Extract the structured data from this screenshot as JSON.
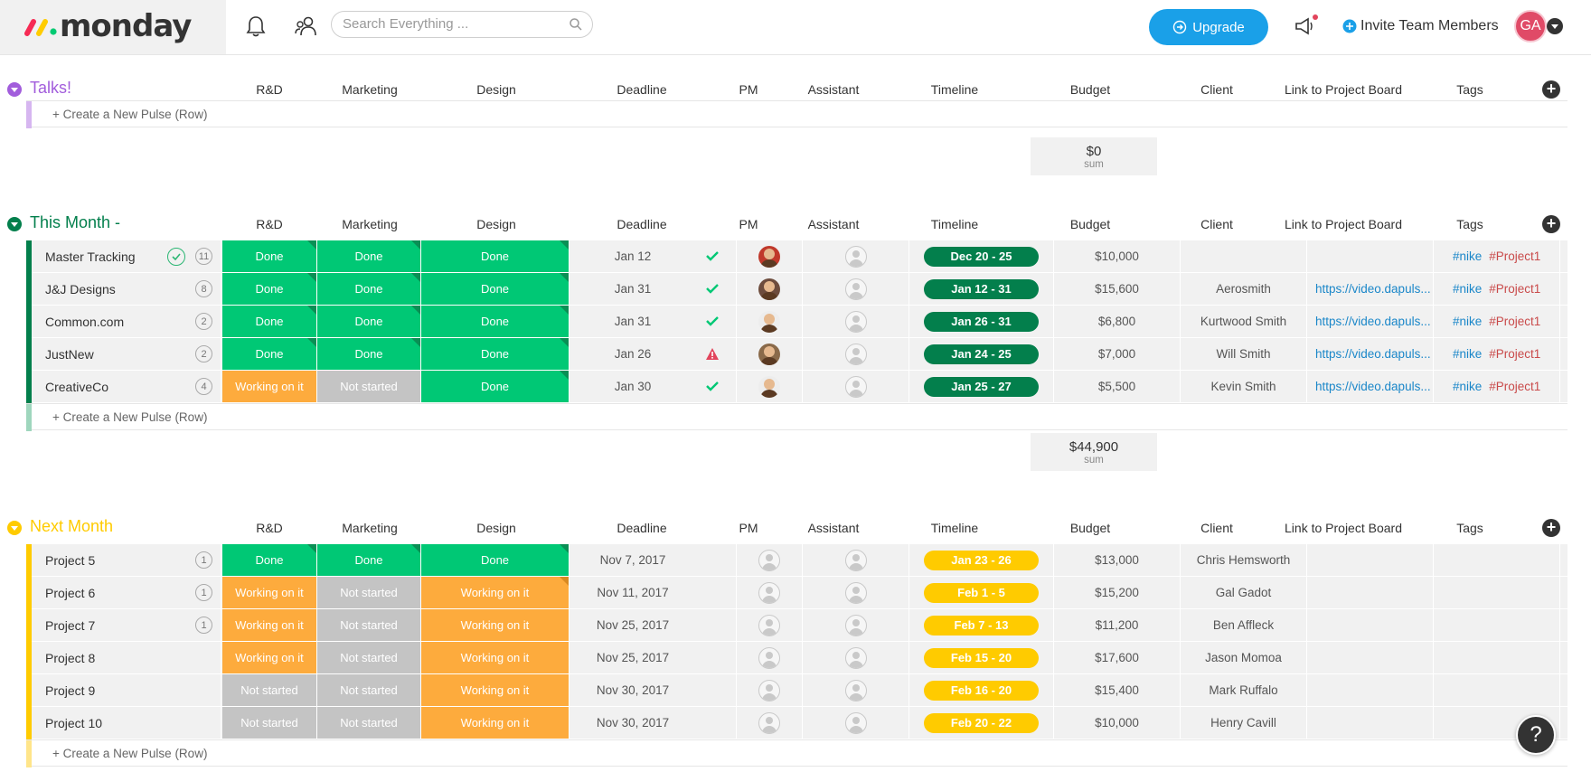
{
  "header": {
    "logo_text": "monday",
    "search_placeholder": "Search Everything ...",
    "upgrade_label": "Upgrade",
    "invite_label": "Invite Team Members",
    "avatar_initials": "GA",
    "accent": "#1aa0e8"
  },
  "columns": [
    "R&D",
    "Marketing",
    "Design",
    "Deadline",
    "PM",
    "Assistant",
    "Timeline",
    "Budget",
    "Client",
    "Link to Project Board",
    "Tags"
  ],
  "new_pulse_label": "+ Create a New Pulse (Row)",
  "sum_label": "sum",
  "groups": {
    "talks": {
      "title": "Talks!",
      "color": "#a25ddc",
      "sum": "$0"
    },
    "this_month": {
      "title": "This Month -",
      "color": "#037f4c",
      "sum": "$44,900",
      "rows": [
        {
          "name": "Master Tracking",
          "count": "11",
          "rd": "Done",
          "mk": "Done",
          "ds": "Done",
          "deadline": "Jan 12",
          "timeline": "Dec 20 - 25",
          "budget": "$10,000",
          "client": "",
          "link": "",
          "tag1": "#nike",
          "tag2": "#Project1"
        },
        {
          "name": "J&J Designs",
          "count": "8",
          "rd": "Done",
          "mk": "Done",
          "ds": "Done",
          "deadline": "Jan 31",
          "timeline": "Jan 12 - 31",
          "budget": "$15,600",
          "client": "Aerosmith",
          "link": "https://video.dapuls...",
          "tag1": "#nike",
          "tag2": "#Project1"
        },
        {
          "name": "Common.com",
          "count": "2",
          "rd": "Done",
          "mk": "Done",
          "ds": "Done",
          "deadline": "Jan 31",
          "timeline": "Jan 26 - 31",
          "budget": "$6,800",
          "client": "Kurtwood Smith",
          "link": "https://video.dapuls...",
          "tag1": "#nike",
          "tag2": "#Project1"
        },
        {
          "name": "JustNew",
          "count": "2",
          "rd": "Done",
          "mk": "Done",
          "ds": "Done",
          "deadline": "Jan 26",
          "timeline": "Jan 24 - 25",
          "budget": "$7,000",
          "client": "Will Smith",
          "link": "https://video.dapuls...",
          "tag1": "#nike",
          "tag2": "#Project1"
        },
        {
          "name": "CreativeCo",
          "count": "4",
          "rd": "Working on it",
          "mk": "Not started",
          "ds": "Done",
          "deadline": "Jan 30",
          "timeline": "Jan 25 - 27",
          "budget": "$5,500",
          "client": "Kevin Smith",
          "link": "https://video.dapuls...",
          "tag1": "#nike",
          "tag2": "#Project1"
        }
      ]
    },
    "next_month": {
      "title": "Next Month",
      "color": "#ffcb00",
      "rows": [
        {
          "name": "Project 5",
          "count": "1",
          "rd": "Done",
          "mk": "Done",
          "ds": "Done",
          "deadline": "Nov 7, 2017",
          "timeline": "Jan 23 - 26",
          "budget": "$13,000",
          "client": "Chris Hemsworth"
        },
        {
          "name": "Project 6",
          "count": "1",
          "rd": "Working on it",
          "mk": "Not started",
          "ds": "Working on it",
          "deadline": "Nov 11, 2017",
          "timeline": "Feb 1 - 5",
          "budget": "$15,200",
          "client": "Gal Gadot"
        },
        {
          "name": "Project 7",
          "count": "1",
          "rd": "Working on it",
          "mk": "Not started",
          "ds": "Working on it",
          "deadline": "Nov 25, 2017",
          "timeline": "Feb 7 - 13",
          "budget": "$11,200",
          "client": "Ben Affleck"
        },
        {
          "name": "Project 8",
          "count": "",
          "rd": "Working on it",
          "mk": "Not started",
          "ds": "Working on it",
          "deadline": "Nov 25, 2017",
          "timeline": "Feb 15 - 20",
          "budget": "$17,600",
          "client": "Jason Momoa"
        },
        {
          "name": "Project 9",
          "count": "",
          "rd": "Not started",
          "mk": "Not started",
          "ds": "Working on it",
          "deadline": "Nov 30, 2017",
          "timeline": "Feb 16 - 20",
          "budget": "$15,400",
          "client": "Mark Ruffalo"
        },
        {
          "name": "Project 10",
          "count": "",
          "rd": "Not started",
          "mk": "Not started",
          "ds": "Working on it",
          "deadline": "Nov 30, 2017",
          "timeline": "Feb 20 - 22",
          "budget": "$10,000",
          "client": "Henry Cavill"
        }
      ]
    }
  },
  "help_label": "?"
}
